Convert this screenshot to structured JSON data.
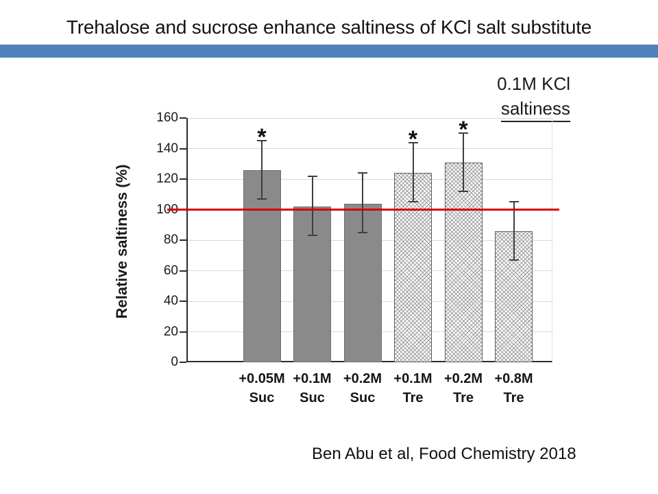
{
  "slide": {
    "title": "Trehalose and sucrose enhance saltiness of KCl salt substitute",
    "citation": "Ben Abu et al, Food Chemistry 2018",
    "accent_color": "#4f81bd"
  },
  "chart_data": {
    "type": "bar",
    "ylabel": "Relative saltiness (%)",
    "xlabel": "",
    "ylim": [
      0,
      160
    ],
    "yticks": [
      0,
      20,
      40,
      60,
      80,
      100,
      120,
      140,
      160
    ],
    "grid": "horizontal",
    "annotation_line1": "0.1M KCl",
    "annotation_line2": "saltiness",
    "sig_marker": "*",
    "reference_line": {
      "value": 100,
      "color": "#d90000",
      "meaning": "0.1M KCl saltiness baseline"
    },
    "categories": [
      "+0.05M Suc",
      "+0.1M Suc",
      "+0.2M Suc",
      "+0.1M Tre",
      "+0.2M Tre",
      "+0.8M Tre"
    ],
    "bars": [
      {
        "label_top": "+0.05M",
        "label_bottom": "Suc",
        "value": 126,
        "err_low": 107,
        "err_high": 145,
        "significant": true,
        "fill": "solid"
      },
      {
        "label_top": "+0.1M",
        "label_bottom": "Suc",
        "value": 102,
        "err_low": 83,
        "err_high": 122,
        "significant": false,
        "fill": "solid"
      },
      {
        "label_top": "+0.2M",
        "label_bottom": "Suc",
        "value": 104,
        "err_low": 85,
        "err_high": 124,
        "significant": false,
        "fill": "solid"
      },
      {
        "label_top": "+0.1M",
        "label_bottom": "Tre",
        "value": 124,
        "err_low": 105,
        "err_high": 144,
        "significant": true,
        "fill": "crosshatch"
      },
      {
        "label_top": "+0.2M",
        "label_bottom": "Tre",
        "value": 131,
        "err_low": 112,
        "err_high": 150,
        "significant": true,
        "fill": "crosshatch"
      },
      {
        "label_top": "+0.8M",
        "label_bottom": "Tre",
        "value": 86,
        "err_low": 67,
        "err_high": 105,
        "significant": false,
        "fill": "crosshatch"
      }
    ],
    "colors": {
      "solid_bar_fill": "#8a8a8a",
      "hatch_line": "#9c9c9c",
      "grid_line": "#d9d9d9",
      "axis": "#2b2b2b",
      "reference_red": "#d90000"
    }
  }
}
